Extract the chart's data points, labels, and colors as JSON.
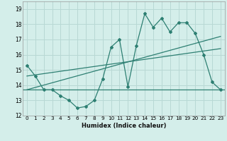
{
  "x": [
    0,
    1,
    2,
    3,
    4,
    5,
    6,
    7,
    8,
    9,
    10,
    11,
    12,
    13,
    14,
    15,
    16,
    17,
    18,
    19,
    20,
    21,
    22,
    23
  ],
  "y_main": [
    15.3,
    14.6,
    13.7,
    13.7,
    13.3,
    13.0,
    12.5,
    12.6,
    13.0,
    14.4,
    16.5,
    17.0,
    13.9,
    16.6,
    18.7,
    17.8,
    18.4,
    17.5,
    18.1,
    18.1,
    17.4,
    16.0,
    14.2,
    13.7
  ],
  "trend1_x": [
    0,
    23
  ],
  "trend1_y": [
    13.7,
    17.2
  ],
  "trend2_x": [
    0,
    23
  ],
  "trend2_y": [
    14.6,
    16.4
  ],
  "hline_y": 13.7,
  "color": "#2d7f72",
  "bg_color": "#d4eeea",
  "grid_color": "#b8d8d4",
  "xlabel": "Humidex (Indice chaleur)",
  "ylim": [
    12,
    19.5
  ],
  "xlim": [
    -0.5,
    23.5
  ],
  "yticks": [
    12,
    13,
    14,
    15,
    16,
    17,
    18,
    19
  ],
  "xticks": [
    0,
    1,
    2,
    3,
    4,
    5,
    6,
    7,
    8,
    9,
    10,
    11,
    12,
    13,
    14,
    15,
    16,
    17,
    18,
    19,
    20,
    21,
    22,
    23
  ],
  "xlabel_fontsize": 6.0,
  "tick_fontsize": 5.2
}
